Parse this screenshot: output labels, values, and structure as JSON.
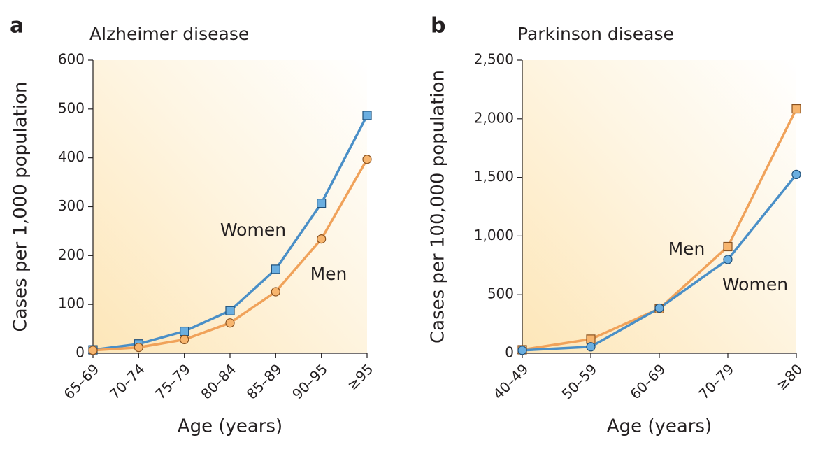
{
  "chart_data": [
    {
      "type": "line",
      "panel": "a",
      "title": "Alzheimer disease",
      "y_label": "Cases per 1,000 population",
      "x_label": "Age (years)",
      "categories": [
        "65–69",
        "70–74",
        "75–79",
        "80–84",
        "85–89",
        "90–95",
        "≥95"
      ],
      "series": [
        {
          "name": "Women",
          "color": "#4a8fc7",
          "marker": "square",
          "values": [
            7,
            19,
            45,
            87,
            172,
            307,
            487
          ]
        },
        {
          "name": "Men",
          "color": "#f0a25a",
          "marker": "circle",
          "values": [
            6,
            12,
            28,
            62,
            126,
            234,
            397
          ]
        }
      ],
      "ylim": [
        0,
        600
      ],
      "yticks": [
        0,
        100,
        200,
        300,
        400,
        500,
        600
      ]
    },
    {
      "type": "line",
      "panel": "b",
      "title": "Parkinson disease",
      "y_label": "Cases per 100,000 population",
      "x_label": "Age (years)",
      "categories": [
        "40–49",
        "50–59",
        "60–69",
        "70–79",
        "≥80"
      ],
      "series": [
        {
          "name": "Men",
          "color": "#f0a25a",
          "marker": "square",
          "values": [
            30,
            120,
            380,
            910,
            2085
          ]
        },
        {
          "name": "Women",
          "color": "#4a8fc7",
          "marker": "circle",
          "values": [
            25,
            55,
            385,
            800,
            1525
          ]
        }
      ],
      "ylim": [
        0,
        2500
      ],
      "yticks": [
        0,
        500,
        {
          "value": 1000,
          "label": "1,000"
        },
        {
          "value": 1500,
          "label": "1,500"
        },
        {
          "value": 2000,
          "label": "2,000"
        },
        {
          "value": 2500,
          "label": "2,500"
        }
      ]
    }
  ]
}
